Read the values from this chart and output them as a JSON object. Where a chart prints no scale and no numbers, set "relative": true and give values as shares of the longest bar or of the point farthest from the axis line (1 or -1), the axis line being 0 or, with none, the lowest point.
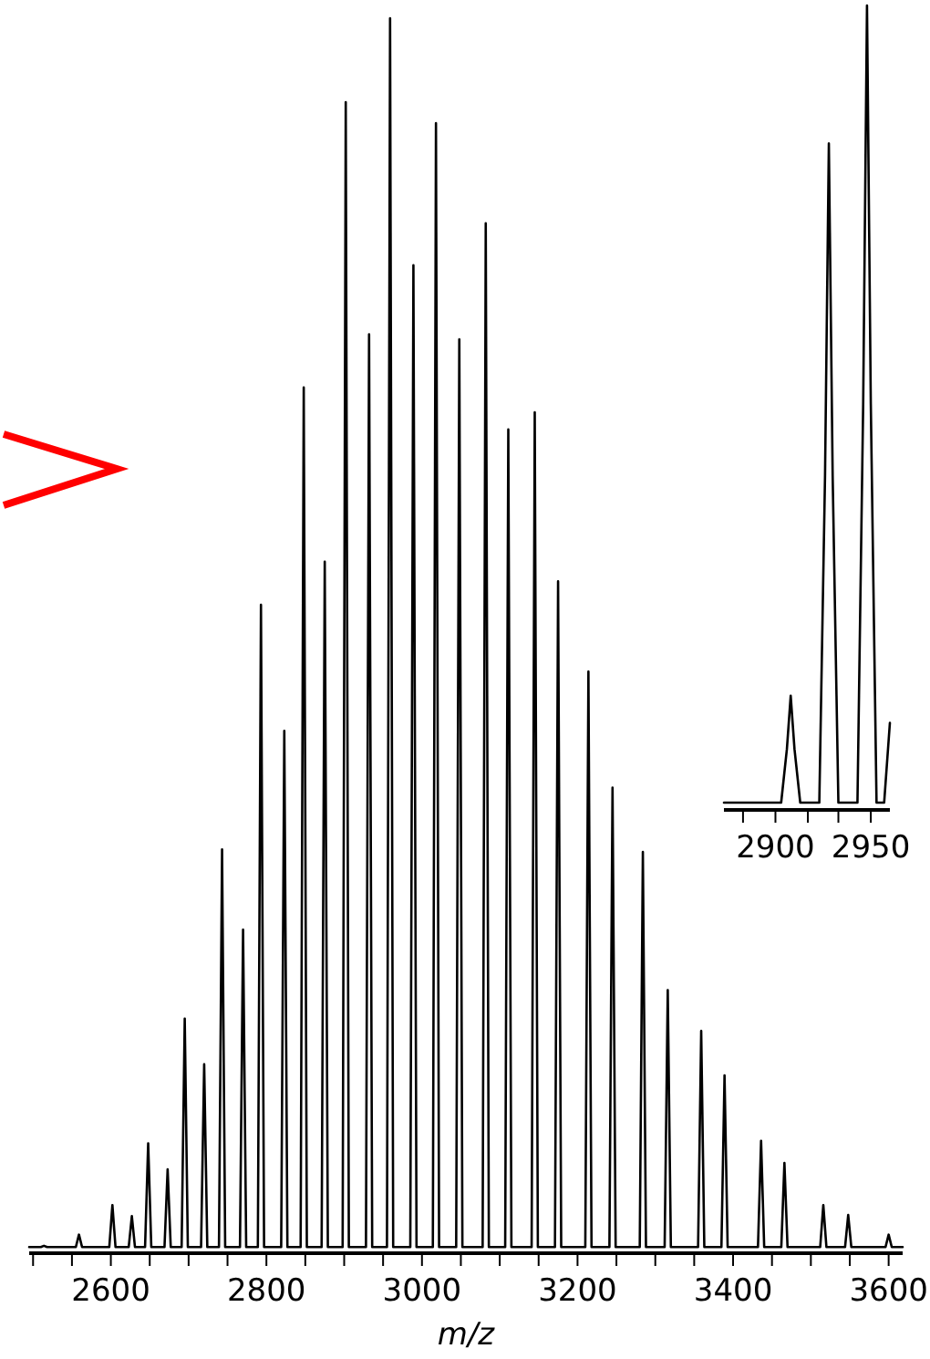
{
  "chart_data": [
    {
      "type": "line",
      "xlabel": "m/z",
      "relative": true,
      "xlim": [
        2495,
        3618
      ],
      "xticks": [
        {
          "value": 2500,
          "label": null
        },
        {
          "value": 2550,
          "label": null
        },
        2600,
        {
          "value": 2650,
          "label": null
        },
        {
          "value": 2700,
          "label": null
        },
        {
          "value": 2750,
          "label": null
        },
        2800,
        {
          "value": 2850,
          "label": null
        },
        {
          "value": 2900,
          "label": null
        },
        {
          "value": 2950,
          "label": null
        },
        3000,
        {
          "value": 3050,
          "label": null
        },
        {
          "value": 3100,
          "label": null
        },
        {
          "value": 3150,
          "label": null
        },
        3200,
        {
          "value": 3250,
          "label": null
        },
        {
          "value": 3300,
          "label": null
        },
        {
          "value": 3350,
          "label": null
        },
        3400,
        {
          "value": 3450,
          "label": null
        },
        {
          "value": 3500,
          "label": null
        },
        {
          "value": 3550,
          "label": null
        },
        3600
      ],
      "x": [
        2495,
        2510,
        2514,
        2518,
        2555,
        2559,
        2563,
        2598,
        2602,
        2606,
        2623,
        2627,
        2631,
        2644,
        2648,
        2652,
        2669,
        2673,
        2677,
        2691,
        2695,
        2699,
        2716,
        2720,
        2724,
        2739,
        2743,
        2747,
        2766,
        2770,
        2774,
        2789,
        2793,
        2797,
        2819,
        2823,
        2827,
        2844,
        2848,
        2852,
        2871,
        2875,
        2879,
        2898,
        2902,
        2906,
        2928,
        2932,
        2936,
        2955,
        2959,
        2963,
        2985,
        2989,
        2993,
        3014,
        3018,
        3022,
        3044,
        3048,
        3052,
        3078,
        3082,
        3086,
        3107,
        3111,
        3115,
        3141,
        3145,
        3149,
        3171,
        3175,
        3179,
        3210,
        3214,
        3218,
        3241,
        3245,
        3249,
        3280,
        3284,
        3288,
        3312,
        3316,
        3320,
        3355,
        3359,
        3363,
        3385,
        3389,
        3393,
        3432,
        3436,
        3440,
        3462,
        3466,
        3470,
        3512,
        3516,
        3520,
        3544,
        3548,
        3552,
        3596,
        3600,
        3604,
        3618
      ],
      "series": [
        {
          "color": "#000000",
          "values": [
            0.005,
            0.005,
            0.006,
            0.005,
            0.005,
            0.015,
            0.005,
            0.005,
            0.039,
            0.005,
            0.005,
            0.03,
            0.005,
            0.005,
            0.089,
            0.005,
            0.005,
            0.068,
            0.005,
            0.005,
            0.19,
            0.005,
            0.005,
            0.153,
            0.005,
            0.005,
            0.327,
            0.005,
            0.005,
            0.262,
            0.005,
            0.005,
            0.525,
            0.005,
            0.005,
            0.423,
            0.005,
            0.005,
            0.701,
            0.005,
            0.005,
            0.56,
            0.005,
            0.005,
            0.932,
            0.005,
            0.005,
            0.744,
            0.005,
            0.005,
            1,
            0.005,
            0.005,
            0.8,
            0.005,
            0.005,
            0.915,
            0.005,
            0.005,
            0.74,
            0.005,
            0.005,
            0.834,
            0.005,
            0.005,
            0.667,
            0.005,
            0.005,
            0.681,
            0.005,
            0.005,
            0.544,
            0.005,
            0.005,
            0.471,
            0.005,
            0.005,
            0.377,
            0.005,
            0.005,
            0.325,
            0.005,
            0.005,
            0.213,
            0.005,
            0.005,
            0.18,
            0.005,
            0.005,
            0.144,
            0.005,
            0.005,
            0.091,
            0.005,
            0.005,
            0.073,
            0.005,
            0.005,
            0.039,
            0.005,
            0.005,
            0.031,
            0.005,
            0.005,
            0.015,
            0.005,
            0.005
          ]
        }
      ]
    },
    {
      "type": "line",
      "relative": true,
      "xlim": [
        2873,
        2960
      ],
      "xticks": [
        {
          "value": 2883,
          "label": null
        },
        2900,
        {
          "value": 2917,
          "label": null
        },
        {
          "value": 2933,
          "label": null
        },
        2950
      ],
      "x": [
        2873,
        2903,
        2906,
        2908,
        2910,
        2913,
        2923,
        2926,
        2928,
        2930,
        2933,
        2943,
        2946,
        2948,
        2950,
        2953,
        2957,
        2960
      ],
      "series": [
        {
          "color": "#000000",
          "values": [
            0,
            0,
            0.067,
            0.134,
            0.067,
            0,
            0,
            0.41,
            0.827,
            0.41,
            0,
            0,
            0.5,
            1,
            0.5,
            0,
            0,
            0.1
          ]
        }
      ]
    }
  ]
}
